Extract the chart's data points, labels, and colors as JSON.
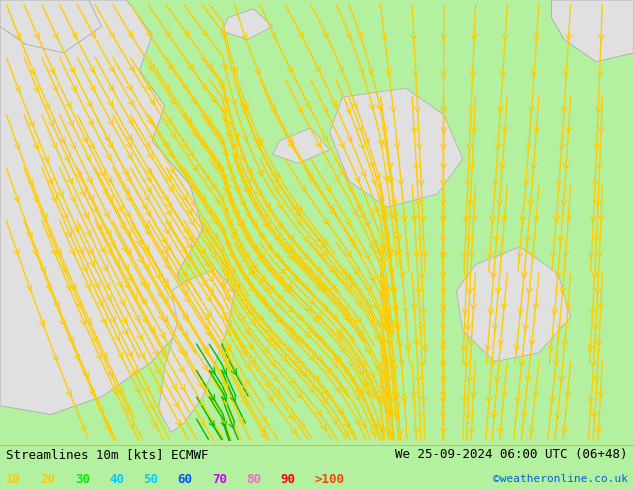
{
  "title_left": "Streamlines 10m [kts] ECMWF",
  "title_right": "We 25-09-2024 06:00 UTC (06+48)",
  "credit": "©weatheronline.co.uk",
  "background_color": "#b3f0a0",
  "land_color": "#e0e0e0",
  "streamline_color": "#ffcc00",
  "legend_values": [
    "10",
    "20",
    "30",
    "40",
    "50",
    "60",
    "70",
    "80",
    "90",
    ">100"
  ],
  "legend_colors": [
    "#ffcc00",
    "#ffcc00",
    "#00ee00",
    "#00ccff",
    "#00ccff",
    "#0055ff",
    "#cc00ff",
    "#ff66cc",
    "#ff0000",
    "#ff4400"
  ],
  "title_fontsize": 9,
  "legend_fontsize": 9,
  "fig_width": 6.34,
  "fig_height": 4.9,
  "dpi": 100
}
